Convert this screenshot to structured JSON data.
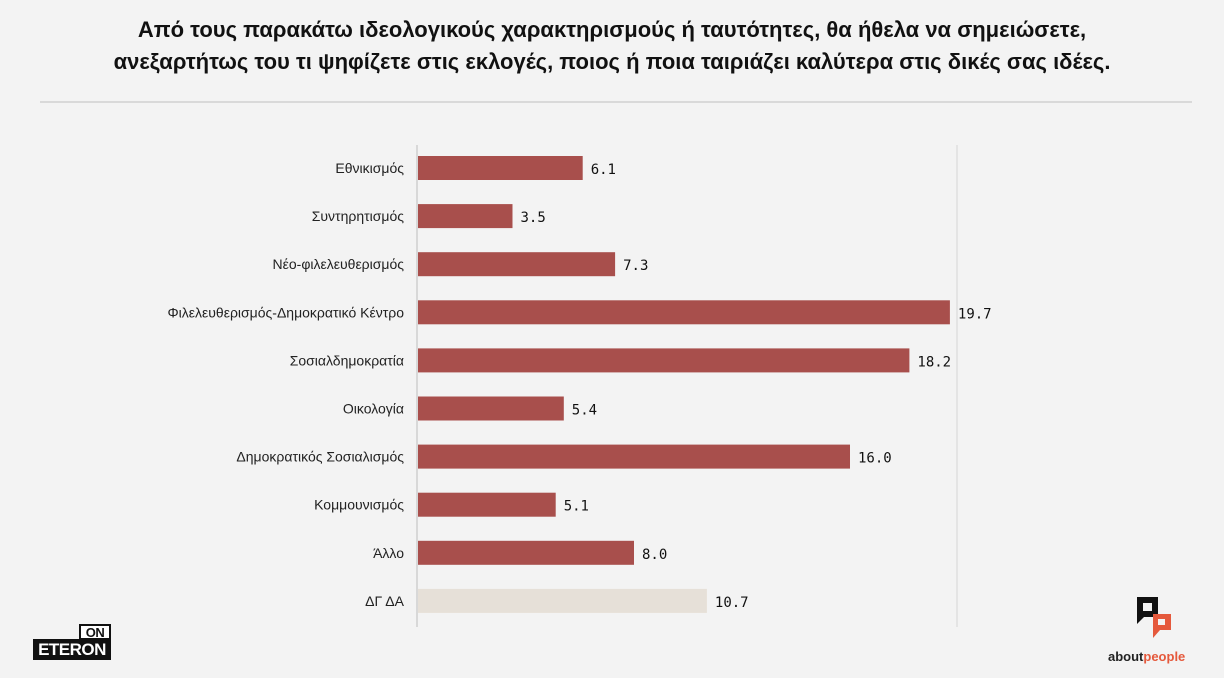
{
  "title_line1": "Από τους παρακάτω ιδεολογικούς χαρακτηρισμούς ή ταυτότητες, θα ήθελα να σημειώσετε,",
  "title_line2": "ανεξαρτήτως του τι ψηφίζετε στις εκλογές, ποιος ή ποια ταιριάζει καλύτερα στις δικές σας ιδέες.",
  "colors": {
    "bar": "#a84f4c",
    "bar_muted": "#e6e0d8",
    "accent_orange": "#e5593c",
    "background": "#f3f3f3"
  },
  "chart_data": {
    "type": "bar",
    "orientation": "horizontal",
    "title": "Από τους παρακάτω ιδεολογικούς χαρακτηρισμούς ή ταυτότητες, θα ήθελα να σημειώσετε, ανεξαρτήτως του τι ψηφίζετε στις εκλογές, ποιος ή ποια ταιριάζει καλύτερα στις δικές σας ιδέες.",
    "xlabel": "",
    "ylabel": "",
    "xlim": [
      0,
      20
    ],
    "grid": false,
    "categories": [
      "Εθνικισμός",
      "Συντηρητισμός",
      "Νέο-φιλελευθερισμός",
      "Φιλελευθερισμός-Δημοκρατικό Κέντρο",
      "Σοσιαλδημοκρατία",
      "Οικολογία",
      "Δημοκρατικός Σοσιαλισμός",
      "Κομμουνισμός",
      "Άλλο",
      "ΔΓ ΔΑ"
    ],
    "values": [
      6.1,
      3.5,
      7.3,
      19.7,
      18.2,
      5.4,
      16.0,
      5.1,
      8.0,
      10.7
    ],
    "value_labels": [
      "6.1",
      "3.5",
      "7.3",
      "19.7",
      "18.2",
      "5.4",
      "16.0",
      "5.1",
      "8.0",
      "10.7"
    ],
    "muted": [
      false,
      false,
      false,
      false,
      false,
      false,
      false,
      false,
      false,
      true
    ]
  },
  "logos": {
    "left_top": "ON",
    "left_bottom": "ETERON",
    "right_prefix": "about",
    "right_suffix": "people"
  }
}
